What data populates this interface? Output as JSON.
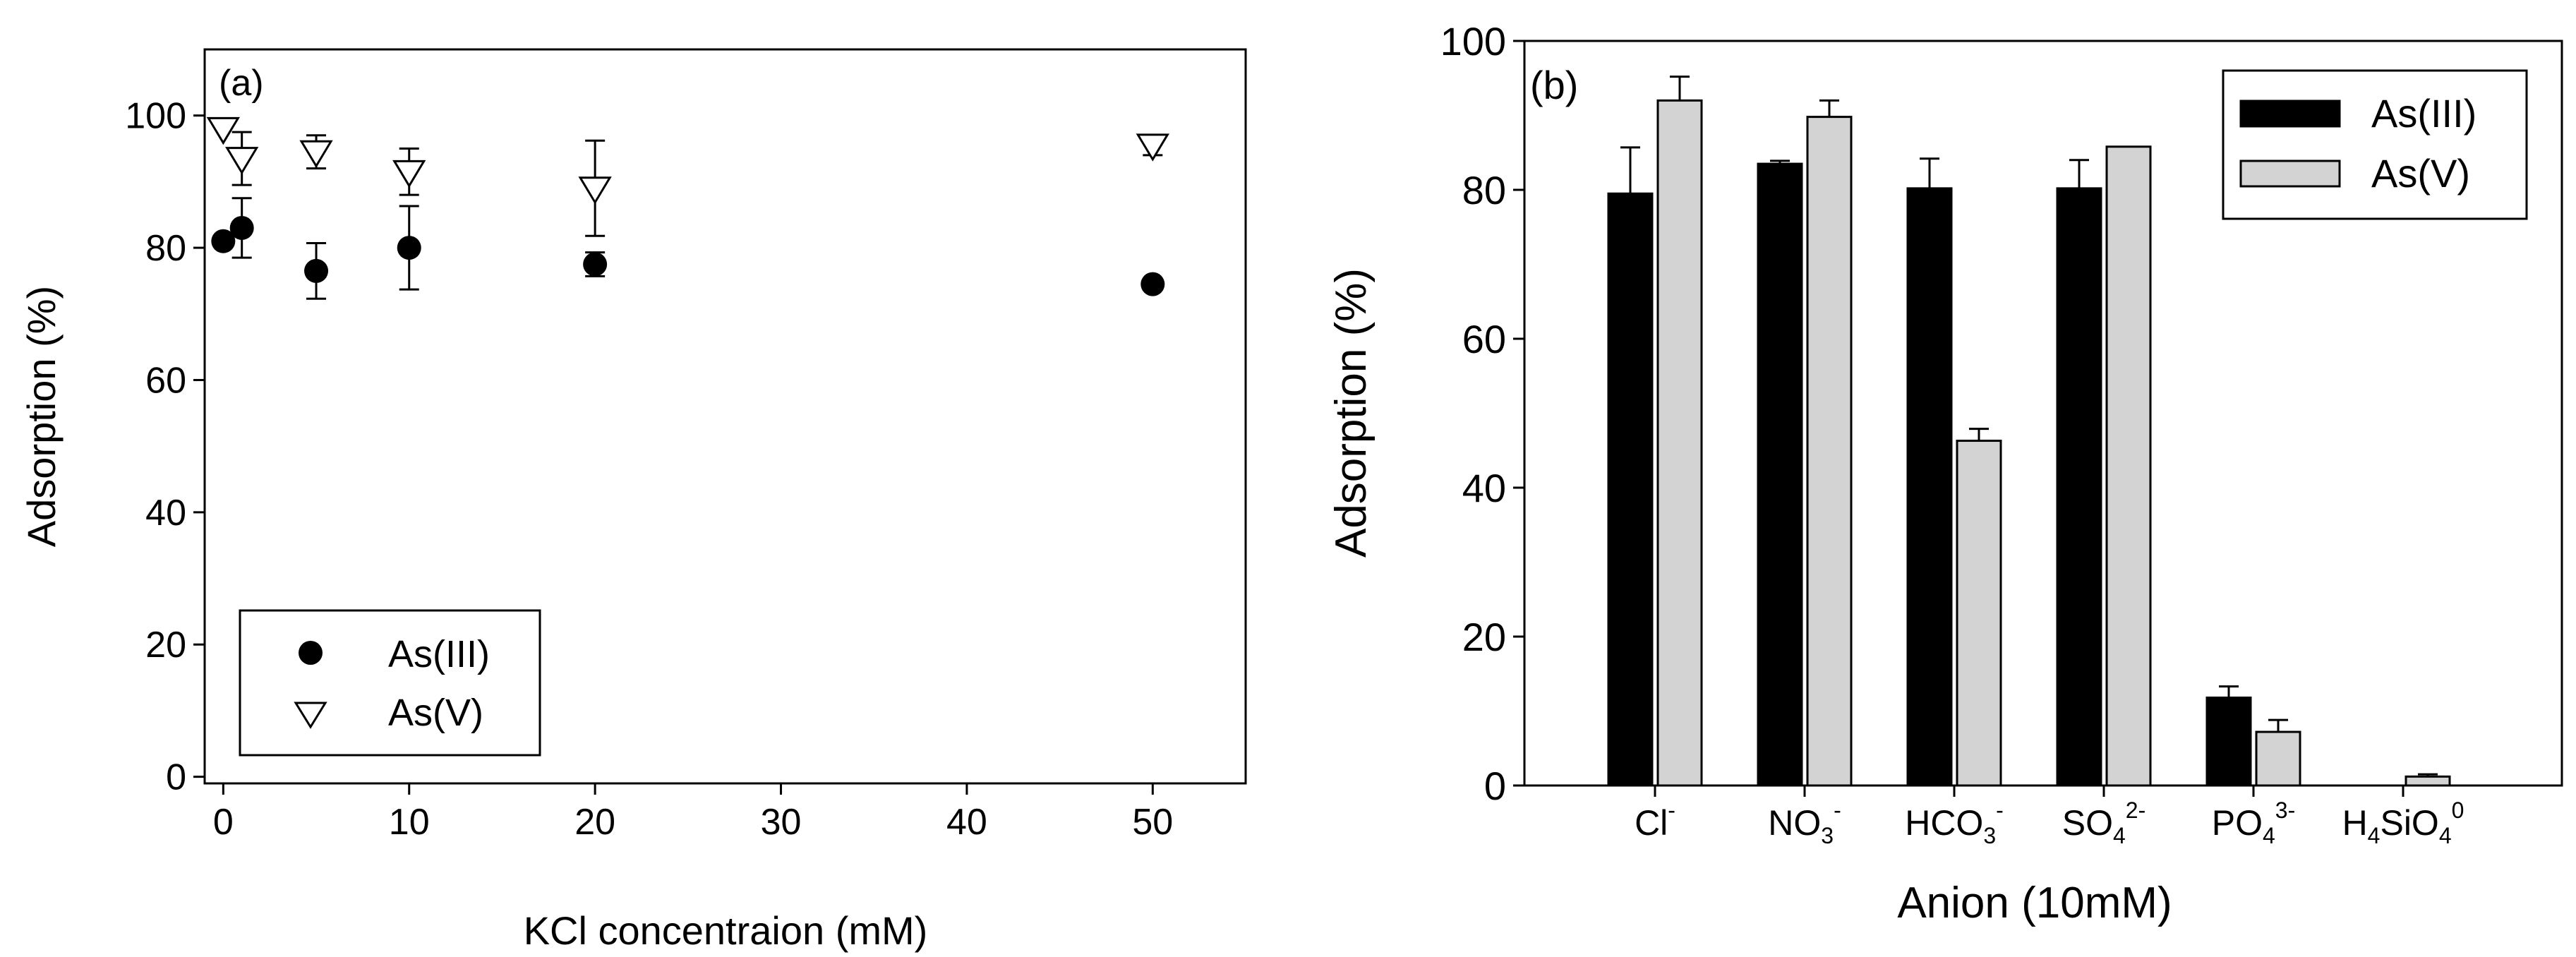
{
  "colors": {
    "as3_marker": "#000000",
    "as5_marker": "#ffffff",
    "as3_bar": "#000000",
    "as5_bar": "#d3d3d3",
    "axis": "#000000"
  },
  "chart_data": [
    {
      "type": "scatter",
      "panel_label": "(a)",
      "xlabel": "KCl concentraion (mM)",
      "ylabel": "Adsorption (%)",
      "xlim": [
        -1,
        55
      ],
      "ylim": [
        -1,
        110
      ],
      "xticks": [
        "0",
        "10",
        "20",
        "30",
        "40",
        "50"
      ],
      "yticks": [
        "0",
        "20",
        "40",
        "60",
        "80",
        "100"
      ],
      "legend_position": "lower-left",
      "series": [
        {
          "name": "As(III)",
          "marker": "circle",
          "x": [
            0,
            1,
            5,
            10,
            20,
            50
          ],
          "y": [
            81,
            83,
            76.5,
            80,
            77.5,
            74.5
          ],
          "err": [
            0.5,
            4.5,
            4.2,
            6.3,
            1.8,
            0.5
          ]
        },
        {
          "name": "As(V)",
          "marker": "triangle-down",
          "x": [
            0,
            1,
            5,
            10,
            20,
            50
          ],
          "y": [
            98,
            93.5,
            94.5,
            91.5,
            89,
            95.5
          ],
          "err": [
            0.5,
            4,
            2.5,
            3.5,
            7.2,
            1.5
          ]
        }
      ]
    },
    {
      "type": "bar",
      "panel_label": "(b)",
      "xlabel": "Anion (10mM)",
      "ylabel": "Adsorption (%)",
      "ylim": [
        0,
        100
      ],
      "yticks": [
        "0",
        "20",
        "40",
        "60",
        "80",
        "100"
      ],
      "categories": [
        {
          "base": "Cl",
          "sub": "",
          "sup": "-"
        },
        {
          "base": "NO",
          "sub": "3",
          "sup": "-"
        },
        {
          "base": "HCO",
          "sub": "3",
          "sup": "-"
        },
        {
          "base": "SO",
          "sub": "4",
          "sup": "2-"
        },
        {
          "base": "PO",
          "sub": "4",
          "sup": "3-"
        },
        {
          "base": "H",
          "sub": "4",
          "mid": "SiO",
          "sub2": "4",
          "sup": "0"
        }
      ],
      "legend_position": "top-right",
      "series": [
        {
          "name": "As(III)",
          "values": [
            79.5,
            83.5,
            80.2,
            80.2,
            11.8,
            0
          ],
          "err": [
            6.2,
            0.4,
            4.0,
            3.8,
            1.5,
            0
          ]
        },
        {
          "name": "As(V)",
          "values": [
            92,
            89.8,
            46.3,
            85.8,
            7.2,
            1.2
          ],
          "err": [
            3.2,
            2.2,
            1.6,
            0,
            1.6,
            0.3
          ]
        }
      ]
    }
  ]
}
